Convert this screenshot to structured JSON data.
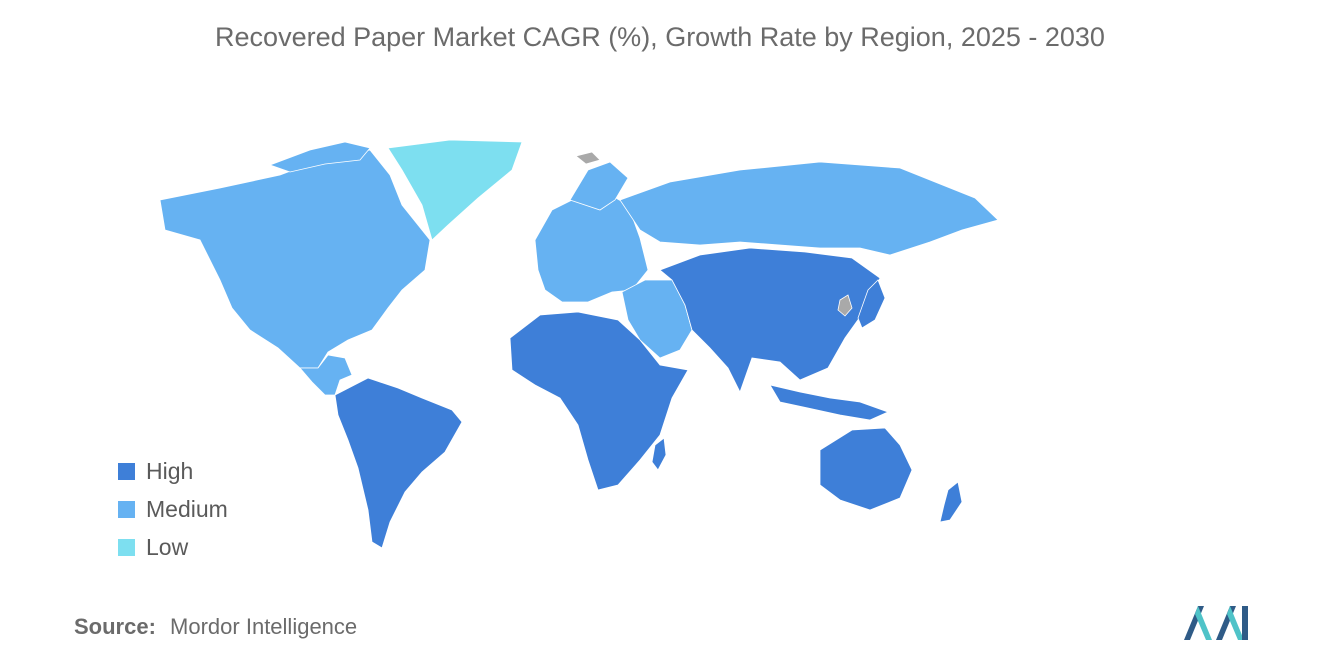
{
  "title": "Recovered Paper Market CAGR (%), Growth Rate by Region, 2025 - 2030",
  "colors": {
    "high": "#3e7fd8",
    "medium": "#66b2f2",
    "low": "#7ddff0",
    "no_data": "#a9a9a9",
    "logo_dark": "#2f5b87",
    "logo_light": "#4fc3c8"
  },
  "legend": {
    "items": [
      {
        "label": "High",
        "color": "#3e7fd8"
      },
      {
        "label": "Medium",
        "color": "#66b2f2"
      },
      {
        "label": "Low",
        "color": "#7ddff0"
      }
    ]
  },
  "regions": {
    "north_america": "Medium",
    "greenland": "Low",
    "latin_america": "High",
    "europe": "Medium",
    "russia": "Medium",
    "middle_east": "Medium",
    "africa": "High",
    "asia_pacific": "High",
    "australia_nz": "High"
  },
  "source": {
    "prefix": "Source:",
    "name": "Mordor Intelligence"
  }
}
